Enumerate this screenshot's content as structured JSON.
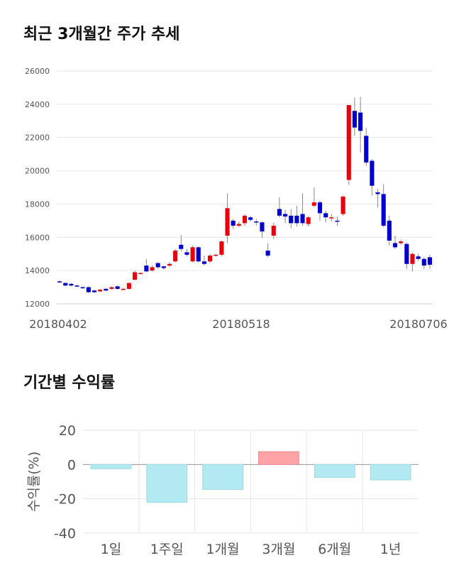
{
  "header1": "최근 3개월간 주가 추세",
  "header2": "기간별 수익률",
  "colors": {
    "up": "#e8000b",
    "down": "#0000cc",
    "pos_bar": "#ffa3a6",
    "neg_bar": "#b3eaf2",
    "neg_bar_stroke": "#9bd9e3",
    "pos_bar_stroke": "#f08a8f"
  },
  "chart_data": [
    {
      "type": "candlestick",
      "title": "최근 3개월간 주가 추세",
      "ylim": [
        12000,
        26000
      ],
      "yticks": [
        "12000",
        "14000",
        "16000",
        "18000",
        "20000",
        "22000",
        "24000",
        "26000"
      ],
      "xticks": [
        "20180402",
        "20180518",
        "20180706"
      ],
      "grid": true,
      "candles": [
        [
          13350,
          13300,
          13400,
          13250
        ],
        [
          13250,
          13100,
          13300,
          13050
        ],
        [
          13200,
          13100,
          13250,
          13050
        ],
        [
          13100,
          13050,
          13150,
          13000
        ],
        [
          13000,
          12950,
          13050,
          12900
        ],
        [
          13000,
          12700,
          13050,
          12650
        ],
        [
          12800,
          12700,
          12850,
          12650
        ],
        [
          12750,
          12850,
          12900,
          12700
        ],
        [
          12900,
          12800,
          12950,
          12750
        ],
        [
          12900,
          13000,
          13050,
          12850
        ],
        [
          13050,
          12900,
          13100,
          12850
        ],
        [
          12850,
          12900,
          12950,
          12800
        ],
        [
          12900,
          13250,
          13300,
          12850
        ],
        [
          13450,
          13900,
          14000,
          13400
        ],
        [
          13850,
          13850,
          13900,
          13800
        ],
        [
          14300,
          13950,
          14700,
          13900
        ],
        [
          14000,
          14200,
          14300,
          13950
        ],
        [
          14450,
          14200,
          14500,
          14100
        ],
        [
          14250,
          14150,
          14300,
          14050
        ],
        [
          14300,
          14400,
          14500,
          14200
        ],
        [
          14550,
          15200,
          15300,
          14500
        ],
        [
          15550,
          15300,
          16150,
          15150
        ],
        [
          15100,
          14950,
          15300,
          14850
        ],
        [
          14550,
          15400,
          15500,
          14500
        ],
        [
          15400,
          14550,
          15450,
          14500
        ],
        [
          14550,
          14400,
          14900,
          14300
        ],
        [
          14550,
          14900,
          15000,
          14450
        ],
        [
          14900,
          14950,
          15000,
          14850
        ],
        [
          14950,
          15750,
          15800,
          14850
        ],
        [
          16100,
          17750,
          18650,
          15650
        ],
        [
          17000,
          16700,
          17100,
          16500
        ],
        [
          16700,
          16800,
          16950,
          16600
        ],
        [
          16850,
          17300,
          17400,
          16700
        ],
        [
          17200,
          17050,
          17300,
          16950
        ],
        [
          16950,
          16900,
          17100,
          16700
        ],
        [
          16900,
          16350,
          16950,
          15950
        ],
        [
          15200,
          14900,
          15650,
          14800
        ],
        [
          16100,
          16700,
          16900,
          15900
        ],
        [
          17700,
          17300,
          18400,
          17200
        ],
        [
          17400,
          17250,
          17650,
          16850
        ],
        [
          17300,
          16850,
          17700,
          16550
        ],
        [
          17300,
          16850,
          17900,
          16650
        ],
        [
          17400,
          16850,
          18650,
          16700
        ],
        [
          16800,
          17200,
          17300,
          16650
        ],
        [
          17900,
          18100,
          19000,
          17800
        ],
        [
          18100,
          17450,
          18200,
          17000
        ],
        [
          17450,
          17200,
          17600,
          16900
        ],
        [
          17200,
          17200,
          17400,
          16950
        ],
        [
          17000,
          16950,
          17250,
          16700
        ],
        [
          17400,
          18450,
          18500,
          17300
        ],
        [
          19450,
          23950,
          23950,
          19150
        ],
        [
          23600,
          22600,
          24400,
          22100
        ],
        [
          23500,
          22400,
          24450,
          21100
        ],
        [
          22100,
          20500,
          22600,
          20300
        ],
        [
          20600,
          19100,
          20700,
          18500
        ],
        [
          18700,
          18600,
          18900,
          17800
        ],
        [
          18600,
          16700,
          19200,
          16600
        ],
        [
          17000,
          15800,
          17300,
          15500
        ],
        [
          15650,
          15400,
          16100,
          15300
        ],
        [
          15650,
          15750,
          15850,
          15550
        ],
        [
          15600,
          14400,
          15700,
          14100
        ],
        [
          14400,
          15000,
          15100,
          13950
        ],
        [
          14850,
          14700,
          15000,
          14600
        ],
        [
          14700,
          14300,
          14800,
          14100
        ],
        [
          14800,
          14350,
          14950,
          14100
        ]
      ]
    },
    {
      "type": "bar",
      "title": "기간별 수익률",
      "categories": [
        "1일",
        "1주일",
        "1개월",
        "3개월",
        "6개월",
        "1년"
      ],
      "values": [
        -2.5,
        -22,
        -14.5,
        7.5,
        -7.5,
        -9
      ],
      "ylabel": "수익률(%)",
      "ylim": [
        -40,
        20
      ],
      "yticks": [
        "20",
        "0",
        "-20",
        "-40"
      ],
      "grid": true
    }
  ]
}
